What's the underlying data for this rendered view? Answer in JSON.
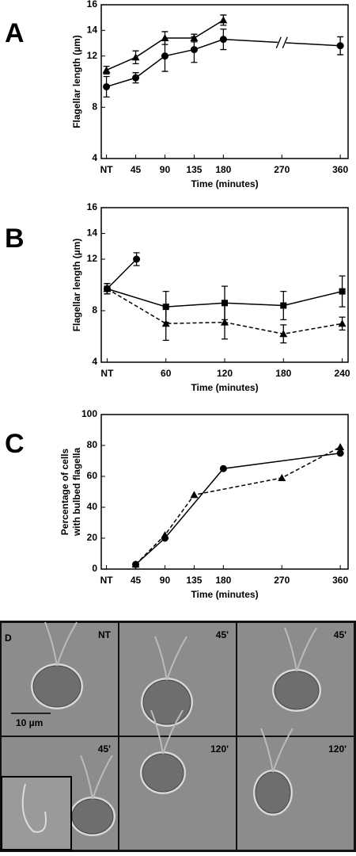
{
  "chart_data": [
    {
      "type": "line",
      "panel": "A",
      "xlabel": "Time (minutes)",
      "ylabel": [
        "Flagellar length (µm)"
      ],
      "xlim": [
        -8,
        372
      ],
      "ylim": [
        4,
        16
      ],
      "xticks": [
        {
          "value": 0,
          "label": "NT"
        },
        45,
        90,
        135,
        180,
        270,
        360
      ],
      "yticks": [
        4,
        8,
        12,
        14,
        16
      ],
      "series": [
        {
          "marker": "circle",
          "color": "#000000",
          "dash": false,
          "break": true,
          "x": [
            0,
            45,
            90,
            135,
            180,
            360
          ],
          "values": [
            9.6,
            10.3,
            12.0,
            12.5,
            13.3,
            12.8
          ],
          "errors": [
            0.8,
            0.4,
            1.2,
            1.0,
            0.8,
            0.7
          ]
        },
        {
          "marker": "triangle",
          "color": "#000000",
          "dash": false,
          "x": [
            0,
            45,
            90,
            135,
            180
          ],
          "values": [
            10.9,
            11.9,
            13.4,
            13.4,
            14.8
          ],
          "errors": [
            0.3,
            0.5,
            0.5,
            0.3,
            0.4
          ]
        }
      ]
    },
    {
      "type": "line",
      "panel": "B",
      "xlabel": "Time (minutes)",
      "ylabel": [
        "Flagellar length (µm)"
      ],
      "xlim": [
        -6,
        246
      ],
      "ylim": [
        4,
        16
      ],
      "xticks": [
        {
          "value": 0,
          "label": "NT"
        },
        60,
        120,
        180,
        240
      ],
      "yticks": [
        4,
        8,
        12,
        14,
        16
      ],
      "series": [
        {
          "marker": "circle",
          "color": "#000000",
          "dash": false,
          "x": [
            0,
            30
          ],
          "values": [
            9.7,
            12.0
          ],
          "errors": [
            0.4,
            0.5
          ]
        },
        {
          "marker": "square",
          "color": "#000000",
          "dash": false,
          "x": [
            0,
            60,
            120,
            180,
            240
          ],
          "values": [
            9.7,
            8.3,
            8.6,
            8.4,
            9.5
          ],
          "errors": [
            0.4,
            1.2,
            1.3,
            1.1,
            1.2
          ]
        },
        {
          "marker": "triangle",
          "color": "#000000",
          "dash": true,
          "x": [
            0,
            60,
            120,
            180,
            240
          ],
          "values": [
            9.7,
            7.0,
            7.1,
            6.2,
            7.0
          ],
          "errors": [
            0.4,
            1.3,
            1.3,
            0.7,
            0.5
          ]
        }
      ]
    },
    {
      "type": "line",
      "panel": "C",
      "xlabel": "Time (minutes)",
      "ylabel": [
        "Percentage of cells",
        "with bulbed flagella"
      ],
      "xlim": [
        -8,
        372
      ],
      "ylim": [
        0,
        100
      ],
      "xticks": [
        {
          "value": 0,
          "label": "NT"
        },
        45,
        90,
        135,
        180,
        270,
        360
      ],
      "yticks": [
        0,
        20,
        40,
        60,
        80,
        100
      ],
      "series": [
        {
          "marker": "circle",
          "color": "#000000",
          "dash": false,
          "x": [
            45,
            90,
            180,
            360
          ],
          "values": [
            3,
            20,
            65,
            75
          ]
        },
        {
          "marker": "triangle",
          "color": "#000000",
          "dash": true,
          "x": [
            45,
            90,
            135,
            270,
            360
          ],
          "values": [
            3,
            22,
            48,
            59,
            79
          ]
        }
      ]
    }
  ],
  "micrographs": {
    "panel": "D",
    "scale_bar": "10 µm",
    "times": [
      "NT",
      "45'",
      "45'",
      "45'",
      "120'",
      "120'"
    ]
  }
}
